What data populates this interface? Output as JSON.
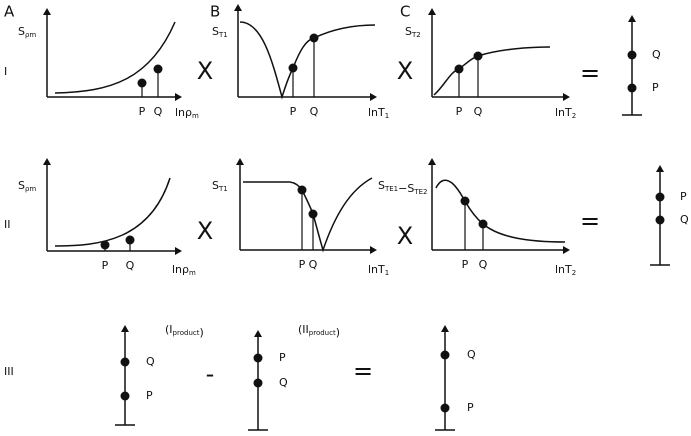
{
  "panel_labels": [
    "A",
    "B",
    "C"
  ],
  "rows": [
    {
      "label": "I",
      "plots": [
        {
          "y_label": {
            "text": "S",
            "sub": "ρm"
          },
          "x_label": {
            "text": "lnρ",
            "sub": "m"
          },
          "points": [
            "P",
            "Q"
          ]
        },
        {
          "y_label": {
            "text": "S",
            "sub": "T1"
          },
          "x_label": {
            "text": "lnT",
            "sub": "1"
          },
          "points": [
            "P",
            "Q"
          ]
        },
        {
          "y_label": {
            "text": "S",
            "sub": "T2"
          },
          "x_label": {
            "text": "lnT",
            "sub": "2"
          },
          "points": [
            "P",
            "Q"
          ]
        }
      ],
      "operators": [
        "X",
        "X",
        "="
      ],
      "result": [
        "Q",
        "P"
      ]
    },
    {
      "label": "II",
      "plots": [
        {
          "y_label": {
            "text": "S",
            "sub": "ρm"
          },
          "x_label": {
            "text": "lnρ",
            "sub": "m"
          },
          "points": [
            "P",
            "Q"
          ]
        },
        {
          "y_label": {
            "text": "S",
            "sub": "T1"
          },
          "x_label": {
            "text": "lnT",
            "sub": "1"
          },
          "points": [
            "P",
            "Q"
          ]
        },
        {
          "y_label": {
            "text": "S",
            "sub": "TE1",
            "text2": "−S",
            "sub2": "TE2"
          },
          "x_label": {
            "text": "lnT",
            "sub": "2"
          },
          "points": [
            "P",
            "Q"
          ]
        }
      ],
      "operators": [
        "X",
        "X",
        "="
      ],
      "result": [
        "P",
        "Q"
      ]
    },
    {
      "label": "III",
      "terms": [
        {
          "tag": {
            "text": "(I",
            "sub": "product",
            "text2": ")"
          },
          "points": [
            "Q",
            "P"
          ]
        },
        {
          "tag": {
            "text": "(II",
            "sub": "product",
            "text2": ")"
          },
          "points": [
            "P",
            "Q"
          ]
        }
      ],
      "operators": [
        "-",
        "="
      ],
      "result": [
        "Q",
        "P"
      ]
    }
  ]
}
